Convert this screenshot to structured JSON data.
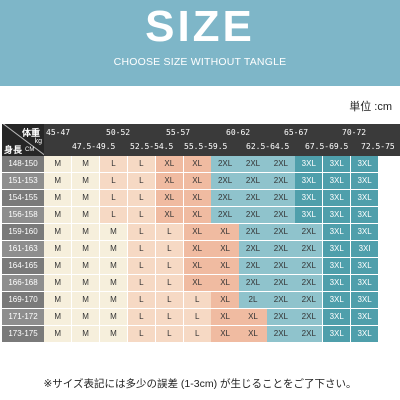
{
  "header": {
    "title": "SIZE",
    "subtitle": "CHOOSE SIZE WITHOUT TANGLE"
  },
  "unit_label": "単位 :cm",
  "table": {
    "corner": {
      "weight": "体重",
      "kg": "kg",
      "height": "身長",
      "cm": "CM"
    },
    "weight_top": [
      "45-47",
      "50-52",
      "55-57",
      "60-62",
      "65-67",
      "70-72"
    ],
    "weight_bottom": [
      "47.5-49.5",
      "52.5-54.5",
      "55.5-59.5",
      "62.5-64.5",
      "67.5-69.5",
      "72.5-75"
    ],
    "rows": [
      {
        "height": "148-150",
        "sizes": [
          "M",
          "M",
          "L",
          "L",
          "XL",
          "XL",
          "2XL",
          "2XL",
          "2XL",
          "3XL",
          "3XL",
          "3XL"
        ]
      },
      {
        "height": "151-153",
        "sizes": [
          "M",
          "M",
          "L",
          "L",
          "XL",
          "XL",
          "2XL",
          "2XL",
          "2XL",
          "3XL",
          "3XL",
          "3XL"
        ]
      },
      {
        "height": "154-155",
        "sizes": [
          "M",
          "M",
          "L",
          "L",
          "XL",
          "XL",
          "2XL",
          "2XL",
          "2XL",
          "3XL",
          "3XL",
          "3XL"
        ]
      },
      {
        "height": "156-158",
        "sizes": [
          "M",
          "M",
          "L",
          "L",
          "XL",
          "XL",
          "2XL",
          "2XL",
          "2XL",
          "3XL",
          "3XL",
          "3XL"
        ]
      },
      {
        "height": "159-160",
        "sizes": [
          "M",
          "M",
          "M",
          "L",
          "L",
          "XL",
          "XL",
          "2XL",
          "2XL",
          "2XL",
          "3XL",
          "3XL"
        ]
      },
      {
        "height": "161-163",
        "sizes": [
          "M",
          "M",
          "M",
          "L",
          "L",
          "XL",
          "XL",
          "2XL",
          "2XL",
          "2XL",
          "3XL",
          "3XI"
        ]
      },
      {
        "height": "164-165",
        "sizes": [
          "M",
          "M",
          "M",
          "L",
          "L",
          "XL",
          "XL",
          "2XL",
          "2XL",
          "2XL",
          "3XL",
          "3XL"
        ]
      },
      {
        "height": "166-168",
        "sizes": [
          "M",
          "M",
          "M",
          "L",
          "L",
          "XL",
          "XL",
          "2XL",
          "2XL",
          "2XL",
          "3XL",
          "3XL"
        ]
      },
      {
        "height": "169-170",
        "sizes": [
          "M",
          "M",
          "M",
          "L",
          "L",
          "L",
          "XL",
          "2L",
          "2XL",
          "2XL",
          "3XL",
          "3XL"
        ]
      },
      {
        "height": "171-172",
        "sizes": [
          "M",
          "M",
          "M",
          "L",
          "L",
          "L",
          "XL",
          "XL",
          "2XL",
          "2XL",
          "3XL",
          "3XL"
        ]
      },
      {
        "height": "173-175",
        "sizes": [
          "M",
          "M",
          "M",
          "L",
          "L",
          "L",
          "XL",
          "XL",
          "2XL",
          "2XL",
          "3XL",
          "3XL"
        ]
      }
    ]
  },
  "colors": {
    "banner": "#7eb6c8",
    "M": "#f6efdc",
    "L": "#f6d9c4",
    "XL": "#f0bba1",
    "2XL": "#8fc3cc",
    "2L": "#8fc3cc",
    "3XL": "#4f9fab",
    "3XI": "#4f9fab"
  },
  "footnote": "※サイズ表記には多少の誤差 (1-3cm) が生じることをご了下さい。"
}
